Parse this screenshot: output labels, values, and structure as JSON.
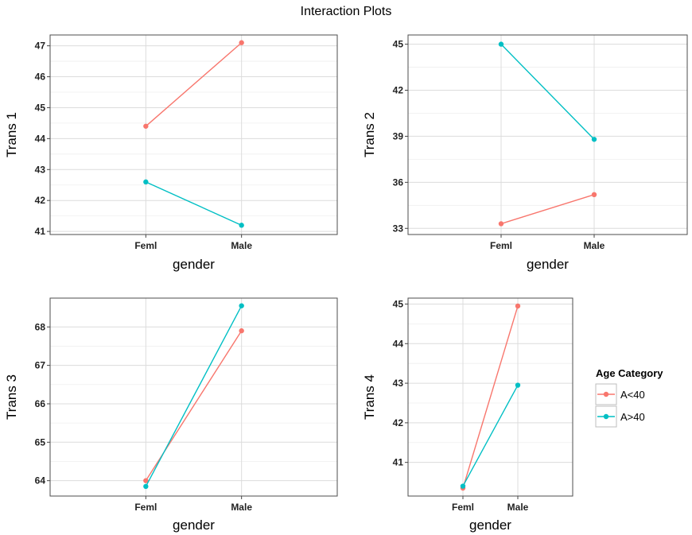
{
  "title": "Interaction Plots",
  "colors": {
    "A<40": "#F8766D",
    "A>40": "#00BFC4",
    "grid": "#dcdcdc",
    "border": "#4d4d4d"
  },
  "legend": {
    "title": "Age Category",
    "items": [
      {
        "label": "A<40",
        "color": "#F8766D"
      },
      {
        "label": "A>40",
        "color": "#00BFC4"
      }
    ]
  },
  "chart_data": [
    {
      "type": "line",
      "xlabel": "gender",
      "ylabel": "Trans 1",
      "categories": [
        "Feml",
        "Male"
      ],
      "ylim": [
        40.9,
        47.35
      ],
      "yticks": [
        "41",
        "42",
        "43",
        "44",
        "45",
        "46",
        "47"
      ],
      "series": [
        {
          "name": "A<40",
          "values": [
            44.4,
            47.1
          ]
        },
        {
          "name": "A>40",
          "values": [
            42.6,
            41.2
          ]
        }
      ]
    },
    {
      "type": "line",
      "xlabel": "gender",
      "ylabel": "Trans 2",
      "categories": [
        "Feml",
        "Male"
      ],
      "ylim": [
        32.6,
        45.6
      ],
      "yticks": [
        "33",
        "36",
        "39",
        "42",
        "45"
      ],
      "series": [
        {
          "name": "A<40",
          "values": [
            33.3,
            35.2
          ]
        },
        {
          "name": "A>40",
          "values": [
            45.0,
            38.8
          ]
        }
      ]
    },
    {
      "type": "line",
      "xlabel": "gender",
      "ylabel": "Trans 3",
      "categories": [
        "Feml",
        "Male"
      ],
      "ylim": [
        63.6,
        68.75
      ],
      "yticks": [
        "64",
        "65",
        "66",
        "67",
        "68"
      ],
      "series": [
        {
          "name": "A<40",
          "values": [
            64.0,
            67.9
          ]
        },
        {
          "name": "A>40",
          "values": [
            63.85,
            68.55
          ]
        }
      ]
    },
    {
      "type": "line",
      "xlabel": "gender",
      "ylabel": "Trans 4",
      "categories": [
        "Feml",
        "Male"
      ],
      "ylim": [
        40.15,
        45.15
      ],
      "yticks": [
        "41",
        "42",
        "43",
        "44",
        "45"
      ],
      "series": [
        {
          "name": "A<40",
          "values": [
            40.35,
            44.95
          ]
        },
        {
          "name": "A>40",
          "values": [
            40.4,
            42.95
          ]
        }
      ]
    }
  ]
}
